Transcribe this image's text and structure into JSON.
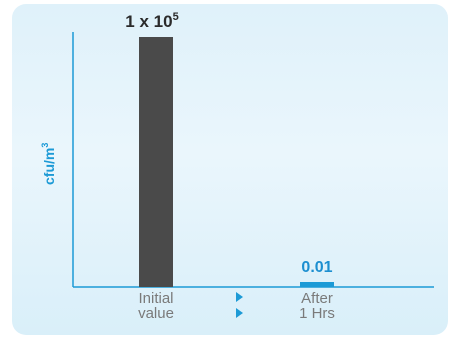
{
  "chart_data": {
    "type": "bar",
    "title": "",
    "ylabel": "cfu/m",
    "ylabel_superscript": "3",
    "xlabel": "",
    "categories": [
      [
        "Initial",
        "value"
      ],
      [
        "After",
        "1 Hrs"
      ]
    ],
    "values": [
      100000,
      0.01
    ],
    "value_labels": [
      {
        "base": "1 x 10",
        "exponent": "5"
      },
      {
        "base": "0.01",
        "exponent": ""
      }
    ],
    "ylim": [
      0,
      100000
    ],
    "grid": false,
    "legend": "none",
    "colors": {
      "bar_initial": "#4a4a4a",
      "bar_after": "#1c9ad6",
      "axis": "#1c9ad6",
      "label_initial": "#2b2b2b",
      "label_after": "#1c8fd0",
      "arrow": "#1c9ad6",
      "panel_top": "#dff1fa",
      "panel_bottom": "#d9eff9"
    },
    "separator_icon": "play-triangle-icon"
  }
}
